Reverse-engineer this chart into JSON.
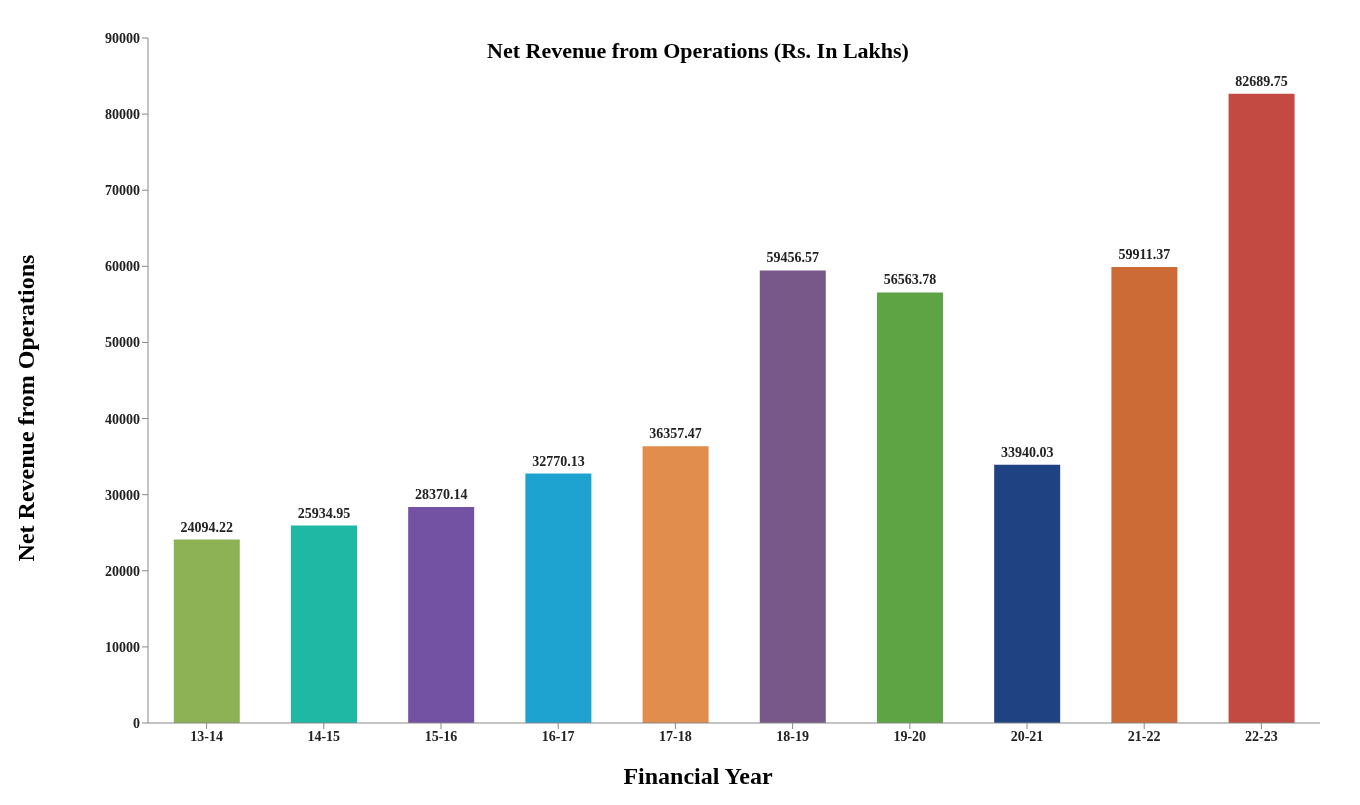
{
  "chart_data": {
    "type": "bar",
    "title": "Net Revenue from Operations (Rs. In Lakhs)",
    "xlabel": "Financial Year",
    "ylabel": "Net Revenue from Operations",
    "categories": [
      "13-14",
      "14-15",
      "15-16",
      "16-17",
      "17-18",
      "18-19",
      "19-20",
      "20-21",
      "21-22",
      "22-23"
    ],
    "values": [
      24094.22,
      25934.95,
      28370.14,
      32770.13,
      36357.47,
      59456.57,
      56563.78,
      33940.03,
      59911.37,
      82689.75
    ],
    "colors": [
      "#8db255",
      "#1fb8a4",
      "#7352a3",
      "#1ea2cf",
      "#e08d4e",
      "#775889",
      "#5ea344",
      "#1f4282",
      "#cd6b36",
      "#c24a42"
    ],
    "ylim": [
      0,
      90000
    ],
    "yticks": [
      0,
      10000,
      20000,
      30000,
      40000,
      50000,
      60000,
      70000,
      80000,
      90000
    ],
    "grid": false,
    "data_labels": true
  }
}
